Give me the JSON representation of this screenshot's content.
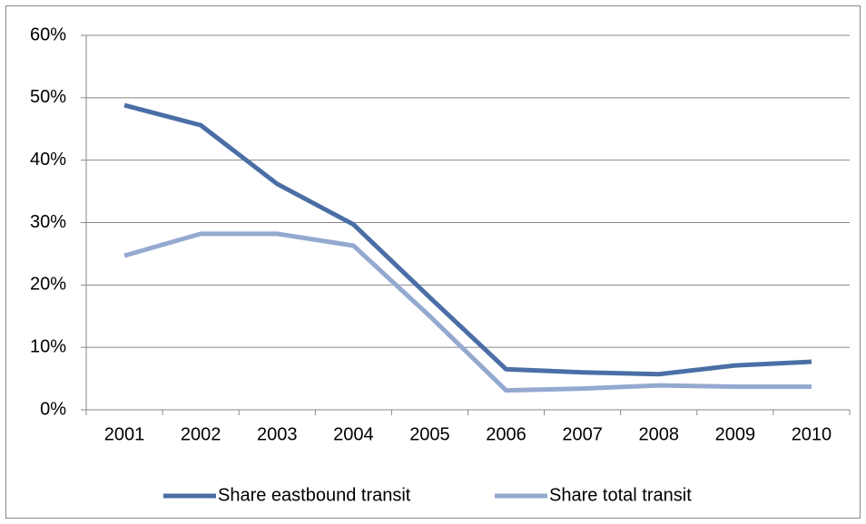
{
  "chart_data": {
    "type": "line",
    "categories": [
      "2001",
      "2002",
      "2003",
      "2004",
      "2005",
      "2006",
      "2007",
      "2008",
      "2009",
      "2010"
    ],
    "series": [
      {
        "name": "Share eastbound transit",
        "color": "#4a6ea5",
        "values": [
          48.8,
          45.6,
          36.2,
          29.7,
          18,
          6.5,
          6.0,
          5.7,
          7.1,
          7.7
        ]
      },
      {
        "name": "Share total transit",
        "color": "#94a9cf",
        "values": [
          24.7,
          28.2,
          28.2,
          26.3,
          15,
          3.1,
          3.4,
          3.9,
          3.7,
          3.7
        ]
      }
    ],
    "ylim": [
      0,
      60
    ],
    "yticks": [
      {
        "value": 0,
        "label": "0%"
      },
      {
        "value": 10,
        "label": "10%"
      },
      {
        "value": 20,
        "label": "20%"
      },
      {
        "value": 30,
        "label": "30%"
      },
      {
        "value": 40,
        "label": "40%"
      },
      {
        "value": 50,
        "label": "50%"
      },
      {
        "value": 60,
        "label": "60%"
      }
    ],
    "grid": true,
    "legend": "bottom"
  }
}
